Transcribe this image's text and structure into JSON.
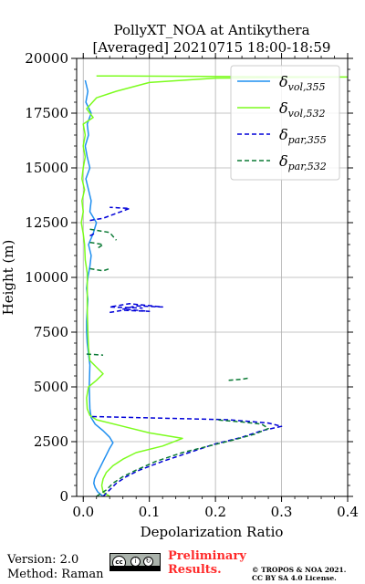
{
  "chart_data": {
    "type": "line",
    "title": [
      "PollyXT_NOA at Antikythera",
      "[Averaged] 20210715 18:00-18:59"
    ],
    "xlabel": "Depolarization Ratio",
    "ylabel": "Height (m)",
    "xlim": [
      -0.01,
      0.4
    ],
    "ylim": [
      0,
      20000
    ],
    "xticks": [
      0.0,
      0.1,
      0.2,
      0.3,
      0.4
    ],
    "xtick_labels": [
      "0.0",
      "0.1",
      "0.2",
      "0.3",
      "0.4"
    ],
    "yticks": [
      0,
      2500,
      5000,
      7500,
      10000,
      12500,
      15000,
      17500,
      20000
    ],
    "ytick_labels": [
      "0",
      "2500",
      "5000",
      "7500",
      "10000",
      "12500",
      "15000",
      "17500",
      "20000"
    ],
    "grid": true,
    "legend_position": "top-right",
    "series": [
      {
        "name": "vol,355",
        "color": "#1f8ff0",
        "style": "solid",
        "points": [
          [
            0.03,
            0
          ],
          [
            0.022,
            200
          ],
          [
            0.018,
            400
          ],
          [
            0.016,
            600
          ],
          [
            0.017,
            800
          ],
          [
            0.02,
            1000
          ],
          [
            0.025,
            1300
          ],
          [
            0.03,
            1600
          ],
          [
            0.035,
            1900
          ],
          [
            0.04,
            2200
          ],
          [
            0.045,
            2450
          ],
          [
            0.04,
            2700
          ],
          [
            0.03,
            3000
          ],
          [
            0.018,
            3300
          ],
          [
            0.012,
            3600
          ],
          [
            0.01,
            4000
          ],
          [
            0.009,
            5000
          ],
          [
            0.01,
            6000
          ],
          [
            0.008,
            6500
          ],
          [
            0.006,
            7000
          ],
          [
            0.005,
            7500
          ],
          [
            0.005,
            8000
          ],
          [
            0.006,
            8500
          ],
          [
            0.007,
            9000
          ],
          [
            0.005,
            9500
          ],
          [
            0.007,
            10000
          ],
          [
            0.01,
            10500
          ],
          [
            0.012,
            11000
          ],
          [
            0.008,
            11500
          ],
          [
            0.015,
            12000
          ],
          [
            0.02,
            12500
          ],
          [
            0.01,
            13000
          ],
          [
            0.012,
            13500
          ],
          [
            0.008,
            14000
          ],
          [
            0.004,
            14500
          ],
          [
            0.01,
            15000
          ],
          [
            0.006,
            15500
          ],
          [
            0.003,
            16000
          ],
          [
            0.008,
            16500
          ],
          [
            0.006,
            17000
          ],
          [
            0.012,
            17500
          ],
          [
            0.004,
            18000
          ],
          [
            0.007,
            18500
          ],
          [
            0.003,
            19000
          ]
        ]
      },
      {
        "name": "vol,532",
        "color": "#7cfc1e",
        "style": "solid",
        "points": [
          [
            0.04,
            0
          ],
          [
            0.03,
            200
          ],
          [
            0.028,
            500
          ],
          [
            0.03,
            800
          ],
          [
            0.035,
            1100
          ],
          [
            0.045,
            1400
          ],
          [
            0.06,
            1700
          ],
          [
            0.08,
            2000
          ],
          [
            0.12,
            2300
          ],
          [
            0.15,
            2650
          ],
          [
            0.1,
            2900
          ],
          [
            0.06,
            3200
          ],
          [
            0.02,
            3500
          ],
          [
            0.01,
            3700
          ],
          [
            0.006,
            4000
          ],
          [
            0.005,
            4500
          ],
          [
            0.008,
            5000
          ],
          [
            0.02,
            5300
          ],
          [
            0.03,
            5600
          ],
          [
            0.02,
            5900
          ],
          [
            0.01,
            6200
          ],
          [
            0.008,
            6800
          ],
          [
            0.007,
            7500
          ],
          [
            0.006,
            8500
          ],
          [
            0.006,
            9500
          ],
          [
            0.006,
            10200
          ],
          [
            0.003,
            10800
          ],
          [
            0.002,
            11500
          ],
          [
            0.0,
            12000
          ],
          [
            -0.003,
            12500
          ],
          [
            0.0,
            13000
          ],
          [
            -0.002,
            13500
          ],
          [
            0.002,
            14000
          ],
          [
            -0.002,
            14500
          ],
          [
            0.0,
            15000
          ],
          [
            0.003,
            15500
          ],
          [
            0.0,
            16000
          ],
          [
            0.003,
            16500
          ],
          [
            0.0,
            17000
          ],
          [
            0.015,
            17300
          ],
          [
            0.005,
            17700
          ],
          [
            0.02,
            18200
          ],
          [
            0.05,
            18500
          ],
          [
            0.1,
            18900
          ],
          [
            0.2,
            19100
          ],
          [
            0.4,
            19150
          ],
          [
            0.02,
            19200
          ]
        ]
      },
      {
        "name": "par,355",
        "color": "#0000d8",
        "style": "dashed",
        "points": [
          [
            0.03,
            0
          ],
          [
            0.04,
            300
          ],
          [
            0.05,
            600
          ],
          [
            0.065,
            900
          ],
          [
            0.085,
            1200
          ],
          [
            0.12,
            1600
          ],
          [
            0.16,
            2000
          ],
          [
            0.2,
            2400
          ],
          [
            0.24,
            2700
          ],
          [
            0.27,
            3000
          ],
          [
            0.3,
            3200
          ],
          [
            0.28,
            3350
          ],
          [
            0.22,
            3500
          ],
          [
            0.08,
            3600
          ],
          [
            0.01,
            3650
          ]
        ]
      },
      {
        "name": "par,532",
        "color": "#0b7a35",
        "style": "dashed",
        "points": [
          [
            0.02,
            0
          ],
          [
            0.035,
            300
          ],
          [
            0.045,
            600
          ],
          [
            0.06,
            900
          ],
          [
            0.08,
            1200
          ],
          [
            0.11,
            1600
          ],
          [
            0.15,
            2000
          ],
          [
            0.19,
            2300
          ],
          [
            0.23,
            2600
          ],
          [
            0.26,
            2850
          ],
          [
            0.28,
            3100
          ],
          [
            0.27,
            3300
          ],
          [
            0.24,
            3400
          ],
          [
            0.2,
            3500
          ]
        ]
      }
    ],
    "fragments": [
      {
        "series": "par,355",
        "points": [
          [
            0.04,
            8400
          ],
          [
            0.06,
            8500
          ],
          [
            0.1,
            8450
          ],
          [
            0.06,
            8550
          ],
          [
            0.08,
            8700
          ],
          [
            0.12,
            8650
          ],
          [
            0.07,
            8800
          ],
          [
            0.04,
            8650
          ],
          [
            0.09,
            8600
          ]
        ]
      },
      {
        "series": "par,355",
        "points": [
          [
            0.01,
            12600
          ],
          [
            0.03,
            12700
          ],
          [
            0.07,
            13150
          ],
          [
            0.04,
            13200
          ]
        ]
      },
      {
        "series": "par,355",
        "points": [
          [
            0.01,
            11900
          ],
          [
            0.02,
            12050
          ]
        ]
      },
      {
        "series": "par,532",
        "points": [
          [
            0.005,
            6500
          ],
          [
            0.03,
            6450
          ]
        ]
      },
      {
        "series": "par,532",
        "points": [
          [
            0.22,
            5300
          ],
          [
            0.24,
            5350
          ],
          [
            0.25,
            5400
          ]
        ]
      },
      {
        "series": "par,532",
        "points": [
          [
            0.01,
            10400
          ],
          [
            0.03,
            10300
          ],
          [
            0.04,
            10400
          ]
        ]
      },
      {
        "series": "par,532",
        "points": [
          [
            0.01,
            11600
          ],
          [
            0.03,
            11500
          ],
          [
            0.02,
            11300
          ]
        ]
      },
      {
        "series": "par,532",
        "points": [
          [
            0.01,
            12200
          ],
          [
            0.04,
            12050
          ],
          [
            0.05,
            11700
          ]
        ]
      }
    ]
  },
  "legend": [
    {
      "sym": "δ",
      "sub": "vol,355",
      "color": "#1f8ff0",
      "style": "solid"
    },
    {
      "sym": "δ",
      "sub": "vol,532",
      "color": "#7cfc1e",
      "style": "solid"
    },
    {
      "sym": "δ",
      "sub": "par,355",
      "color": "#0000d8",
      "style": "dashed"
    },
    {
      "sym": "δ",
      "sub": "par,532",
      "color": "#0b7a35",
      "style": "dashed"
    }
  ],
  "footer": {
    "version": "Version: 2.0",
    "method": "Method: Raman",
    "preliminary_line1": "Preliminary",
    "preliminary_line2": "Results.",
    "copyright_line1": "© TROPOS & NOA 2021.",
    "copyright_line2": "CC BY SA 4.0 License.",
    "license_badge_text": "CC BY SA"
  }
}
